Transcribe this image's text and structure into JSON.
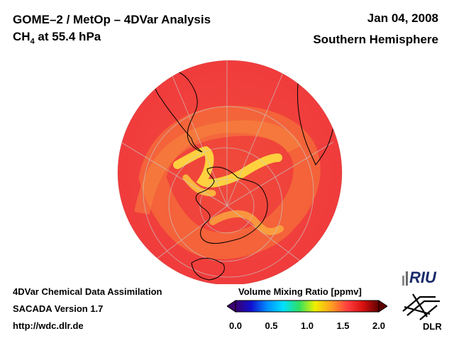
{
  "header": {
    "title": "GOME–2 / MetOp – 4DVar Analysis",
    "species": "CH",
    "species_sub": "4",
    "species_rest": " at 55.4 hPa",
    "date": "Jan 04, 2008",
    "region": "Southern Hemisphere"
  },
  "footer": {
    "line1": "4DVar Chemical Data Assimilation",
    "line2": "SACADA Version 1.7",
    "line3": "http://wdc.dlr.de"
  },
  "colorbar": {
    "title": "Volume Mixing Ratio [ppmv]",
    "ticks": [
      "0.0",
      "0.5",
      "1.0",
      "1.5",
      "2.0"
    ],
    "min": 0.0,
    "max": 2.0,
    "colors": [
      "#3a0070",
      "#1010d0",
      "#0090ff",
      "#00e0ff",
      "#30e060",
      "#f0f000",
      "#ffa020",
      "#ff4040",
      "#d81010",
      "#600000"
    ]
  },
  "map": {
    "projection": "orthographic",
    "hemisphere": "south",
    "background_color": "#f44040",
    "high_value_band_color": "#ffe040",
    "outline_color": "#000000"
  },
  "logos": {
    "riu": "RIU",
    "dlr": "DLR"
  }
}
